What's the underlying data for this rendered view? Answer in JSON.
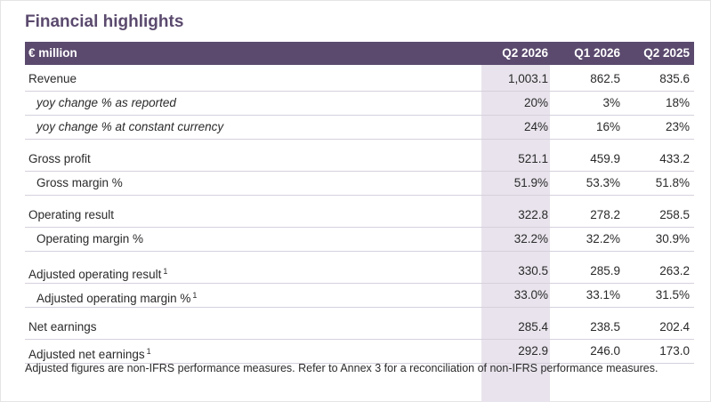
{
  "title": "Financial highlights",
  "header": {
    "label": "€ million",
    "col1": "Q2 2026",
    "col2": "Q1 2026",
    "col3": "Q2 2025"
  },
  "rows": [
    {
      "label": "Revenue",
      "v1": "1,003.1",
      "v2": "862.5",
      "v3": "835.6"
    },
    {
      "label": "yoy change % as reported",
      "v1": "20%",
      "v2": "3%",
      "v3": "18%"
    },
    {
      "label": "yoy change % at constant currency",
      "v1": "24%",
      "v2": "16%",
      "v3": "23%"
    },
    {
      "label": "Gross profit",
      "v1": "521.1",
      "v2": "459.9",
      "v3": "433.2"
    },
    {
      "label": "Gross margin %",
      "v1": "51.9%",
      "v2": "53.3%",
      "v3": "51.8%"
    },
    {
      "label": "Operating result",
      "v1": "322.8",
      "v2": "278.2",
      "v3": "258.5"
    },
    {
      "label": "Operating margin %",
      "v1": "32.2%",
      "v2": "32.2%",
      "v3": "30.9%"
    },
    {
      "label": "Adjusted operating result",
      "sup": "1",
      "v1": "330.5",
      "v2": "285.9",
      "v3": "263.2"
    },
    {
      "label": "Adjusted operating margin %",
      "sup": "1",
      "v1": "33.0%",
      "v2": "33.1%",
      "v3": "31.5%"
    },
    {
      "label": "Net earnings",
      "v1": "285.4",
      "v2": "238.5",
      "v3": "202.4"
    },
    {
      "label": "Adjusted net earnings",
      "sup": "1",
      "v1": "292.9",
      "v2": "246.0",
      "v3": "173.0"
    }
  ],
  "footnote": "Adjusted figures are non-IFRS performance measures. Refer to Annex 3 for a reconciliation of non-IFRS performance measures.",
  "colors": {
    "header_bg": "#5b4a6e",
    "highlight_col": "#e8e3ec",
    "title": "#5b4a6e"
  }
}
